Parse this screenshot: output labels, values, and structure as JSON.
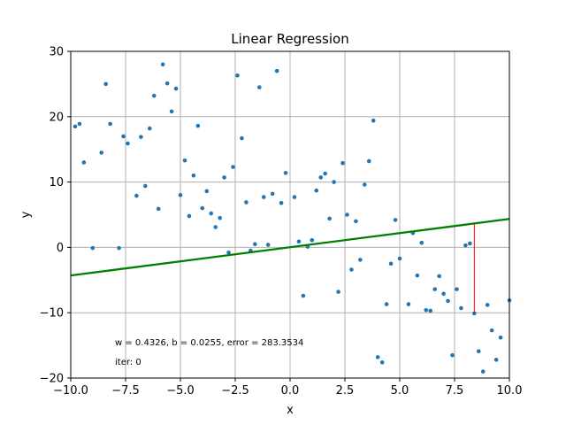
{
  "chart_data": {
    "type": "scatter",
    "title": "Linear Regression",
    "xlabel": "x",
    "ylabel": "y",
    "xlim": [
      -10,
      10
    ],
    "ylim": [
      -20,
      30
    ],
    "grid": true,
    "x_ticks": [
      -10.0,
      -7.5,
      -5.0,
      -2.5,
      0.0,
      2.5,
      5.0,
      7.5,
      10.0
    ],
    "x_tick_labels": [
      "−10.0",
      "−7.5",
      "−5.0",
      "−2.5",
      "0.0",
      "2.5",
      "5.0",
      "7.5",
      "10.0"
    ],
    "y_ticks": [
      -20,
      -10,
      0,
      10,
      20,
      30
    ],
    "y_tick_labels": [
      "−20",
      "−10",
      "0",
      "10",
      "20",
      "30"
    ],
    "colors": {
      "points": "#1f77b4",
      "fit_line": "#008000",
      "residual": "#ff0000",
      "grid": "#b0b0b0"
    },
    "points": [
      [
        -9.8,
        18.5
      ],
      [
        -9.6,
        18.9
      ],
      [
        -9.4,
        13.0
      ],
      [
        -9.0,
        -0.1
      ],
      [
        -8.6,
        14.5
      ],
      [
        -8.4,
        25.0
      ],
      [
        -8.2,
        18.9
      ],
      [
        -7.8,
        -0.1
      ],
      [
        -7.6,
        17.0
      ],
      [
        -7.4,
        15.9
      ],
      [
        -7.0,
        7.9
      ],
      [
        -6.8,
        16.9
      ],
      [
        -6.6,
        9.4
      ],
      [
        -6.4,
        18.2
      ],
      [
        -6.2,
        23.2
      ],
      [
        -6.0,
        5.9
      ],
      [
        -5.8,
        28.0
      ],
      [
        -5.6,
        25.1
      ],
      [
        -5.4,
        20.8
      ],
      [
        -5.2,
        24.3
      ],
      [
        -5.0,
        8.0
      ],
      [
        -4.8,
        13.3
      ],
      [
        -4.6,
        4.8
      ],
      [
        -4.4,
        11.0
      ],
      [
        -4.2,
        18.6
      ],
      [
        -4.0,
        6.0
      ],
      [
        -3.8,
        8.6
      ],
      [
        -3.6,
        5.2
      ],
      [
        -3.4,
        3.1
      ],
      [
        -3.2,
        4.5
      ],
      [
        -3.0,
        10.7
      ],
      [
        -2.8,
        -0.8
      ],
      [
        -2.6,
        12.3
      ],
      [
        -2.4,
        26.3
      ],
      [
        -2.2,
        16.7
      ],
      [
        -2.0,
        6.9
      ],
      [
        -1.8,
        -0.5
      ],
      [
        -1.6,
        0.5
      ],
      [
        -1.4,
        24.5
      ],
      [
        -1.2,
        7.7
      ],
      [
        -1.0,
        0.4
      ],
      [
        -0.8,
        8.2
      ],
      [
        -0.6,
        27.0
      ],
      [
        -0.4,
        6.8
      ],
      [
        -0.2,
        11.4
      ],
      [
        0.2,
        7.7
      ],
      [
        0.4,
        0.9
      ],
      [
        0.6,
        -7.4
      ],
      [
        0.8,
        0.1
      ],
      [
        1.0,
        1.1
      ],
      [
        1.2,
        8.7
      ],
      [
        1.4,
        10.7
      ],
      [
        1.6,
        11.3
      ],
      [
        1.8,
        4.4
      ],
      [
        2.0,
        10.0
      ],
      [
        2.2,
        -6.8
      ],
      [
        2.4,
        12.9
      ],
      [
        2.6,
        5.0
      ],
      [
        2.8,
        -3.4
      ],
      [
        3.0,
        4.0
      ],
      [
        3.2,
        -1.9
      ],
      [
        3.4,
        9.6
      ],
      [
        3.6,
        13.2
      ],
      [
        3.8,
        19.4
      ],
      [
        4.0,
        -16.8
      ],
      [
        4.2,
        -17.6
      ],
      [
        4.4,
        -8.7
      ],
      [
        4.6,
        -2.5
      ],
      [
        4.8,
        4.2
      ],
      [
        5.0,
        -1.7
      ],
      [
        5.4,
        -8.7
      ],
      [
        5.6,
        2.2
      ],
      [
        5.8,
        -4.3
      ],
      [
        6.0,
        0.7
      ],
      [
        6.2,
        -9.6
      ],
      [
        6.4,
        -9.7
      ],
      [
        6.6,
        -6.4
      ],
      [
        6.8,
        -4.4
      ],
      [
        7.0,
        -7.1
      ],
      [
        7.2,
        -8.2
      ],
      [
        7.4,
        -16.5
      ],
      [
        7.6,
        -6.4
      ],
      [
        7.8,
        -9.3
      ],
      [
        8.0,
        0.3
      ],
      [
        8.2,
        0.6
      ],
      [
        8.4,
        -10.1
      ],
      [
        8.6,
        -15.9
      ],
      [
        8.8,
        -19.0
      ],
      [
        9.0,
        -8.8
      ],
      [
        9.2,
        -12.7
      ],
      [
        9.4,
        -17.2
      ],
      [
        9.6,
        -13.8
      ],
      [
        10.0,
        -8.1
      ]
    ],
    "fit": {
      "w": 0.4326,
      "b": 0.0255
    },
    "residual": {
      "x": 8.4,
      "y": -10.1
    },
    "annotation_params": "w = 0.4326, b = 0.0255, error = 283.3534",
    "annotation_iter": "iter: 0"
  }
}
